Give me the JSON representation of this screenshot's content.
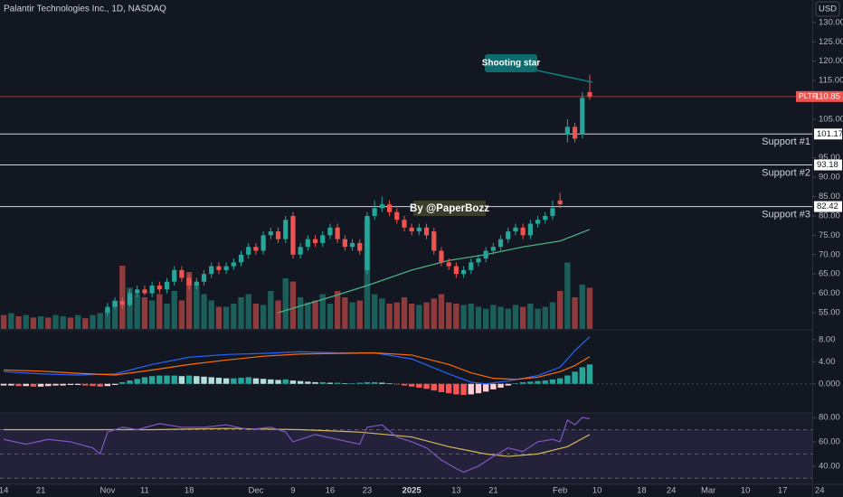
{
  "chart_data": {
    "type": "candlestick",
    "title": "Palantir Technologies Inc., 1D, NASDAQ",
    "currency": "USD",
    "xlim": [
      -0.5,
      109
    ],
    "xticks": [
      {
        "value": 0,
        "label": "14"
      },
      {
        "value": 5,
        "label": "21"
      },
      {
        "value": 14,
        "label": "Nov"
      },
      {
        "value": 19,
        "label": "11"
      },
      {
        "value": 25,
        "label": "18"
      },
      {
        "value": 34,
        "label": "Dec"
      },
      {
        "value": 39,
        "label": "9"
      },
      {
        "value": 44,
        "label": "16"
      },
      {
        "value": 49,
        "label": "23"
      },
      {
        "value": 55,
        "label": "2025"
      },
      {
        "value": 61,
        "label": "13"
      },
      {
        "value": 66,
        "label": "21"
      },
      {
        "value": 75,
        "label": "Feb"
      },
      {
        "value": 80,
        "label": "10"
      },
      {
        "value": 86,
        "label": "18"
      },
      {
        "value": 90,
        "label": "24"
      },
      {
        "value": 95,
        "label": "Mar"
      },
      {
        "value": 100,
        "label": "10"
      },
      {
        "value": 105,
        "label": "17"
      },
      {
        "value": 110,
        "label": "24"
      }
    ],
    "ylim": [
      50.8,
      135.8
    ],
    "yticks": [
      {
        "value": 130,
        "label": "130.00"
      },
      {
        "value": 125,
        "label": "125.00"
      },
      {
        "value": 120,
        "label": "120.00"
      },
      {
        "value": 115,
        "label": "115.00"
      },
      {
        "value": 105,
        "label": "105.00"
      },
      {
        "value": 95,
        "label": "95.00"
      },
      {
        "value": 90,
        "label": "90.00"
      },
      {
        "value": 85,
        "label": "85.00"
      },
      {
        "value": 80,
        "label": "80.00"
      },
      {
        "value": 75,
        "label": "75.00"
      },
      {
        "value": 70,
        "label": "70.00"
      },
      {
        "value": 65,
        "label": "65.00"
      },
      {
        "value": 60,
        "label": "60.00"
      },
      {
        "value": 55,
        "label": "55.00"
      }
    ],
    "up_color": "#26a69a",
    "down_color": "#ef5350",
    "open": [
      null,
      null,
      null,
      null,
      null,
      null,
      null,
      null,
      null,
      null,
      null,
      null,
      null,
      null,
      55,
      56.5,
      58,
      57,
      60,
      61,
      60,
      62,
      61,
      63,
      66,
      64,
      62,
      63,
      65,
      67,
      66,
      67,
      68,
      70,
      72,
      71,
      75,
      76,
      74,
      80,
      70,
      72,
      74,
      73,
      75,
      77,
      74,
      72,
      73,
      66,
      80,
      82,
      83,
      81,
      79,
      77,
      76,
      77,
      76,
      71,
      68,
      67,
      65,
      66,
      68,
      69,
      71,
      72,
      74,
      76,
      77,
      75,
      78,
      79,
      80,
      84,
      101,
      103,
      101,
      112
    ],
    "high": [
      null,
      null,
      null,
      null,
      null,
      null,
      null,
      null,
      null,
      null,
      null,
      null,
      null,
      null,
      57.5,
      59,
      59,
      61,
      62,
      62,
      63,
      63,
      64,
      67,
      67,
      65,
      64,
      66,
      68,
      68,
      68,
      69,
      71,
      73,
      73,
      76,
      77,
      77,
      80,
      81,
      73,
      75,
      75,
      76,
      78,
      78,
      75,
      74,
      74,
      81,
      84,
      85,
      84,
      82,
      80,
      78,
      78,
      78,
      77,
      72,
      69,
      68,
      67,
      69,
      70,
      72,
      73,
      75,
      77,
      78,
      78,
      79,
      80,
      81,
      84,
      86,
      105,
      104,
      112,
      116.5
    ],
    "low": [
      null,
      null,
      null,
      null,
      null,
      null,
      null,
      null,
      null,
      null,
      null,
      null,
      null,
      null,
      54,
      56,
      56,
      56.5,
      59,
      59.5,
      59,
      60,
      60,
      62,
      63,
      61,
      61,
      62,
      64,
      65,
      65,
      66,
      67,
      69,
      70,
      70,
      74,
      73,
      73,
      69,
      69,
      71,
      72,
      72,
      74,
      73,
      71,
      71,
      70,
      65,
      79,
      81,
      80,
      78,
      76,
      75,
      75,
      74,
      70,
      67,
      66,
      64,
      64,
      65,
      67,
      68,
      70,
      71,
      73,
      75,
      74,
      74,
      77,
      78,
      79,
      82,
      99,
      99,
      100,
      110
    ],
    "close": [
      null,
      null,
      null,
      null,
      null,
      null,
      null,
      null,
      null,
      null,
      null,
      null,
      null,
      null,
      56.5,
      58,
      57,
      60,
      61,
      60,
      62,
      61,
      63,
      66,
      64,
      62,
      63,
      65,
      67,
      66,
      67,
      68,
      70,
      72,
      71,
      75,
      76,
      74,
      79,
      70,
      72,
      74,
      73,
      75,
      77,
      74,
      72,
      73,
      71,
      80,
      82,
      83,
      81,
      79,
      77,
      76,
      77,
      75,
      71,
      68,
      67,
      65,
      66,
      68,
      69,
      71,
      72,
      74,
      76,
      77,
      75,
      78,
      79,
      80,
      82,
      83,
      103,
      100,
      110.5,
      110.85
    ],
    "ma": {
      "color": "#4caf84",
      "x": [
        37,
        44,
        49,
        55,
        60,
        65,
        70,
        75,
        79
      ],
      "values": [
        55,
        59,
        62,
        66,
        68.5,
        70,
        72,
        73.5,
        76.5
      ]
    },
    "volume": {
      "vlim": [
        0,
        200
      ],
      "up_color": "#1b5e5a",
      "down_color": "#8e3b3e",
      "up": [
        0,
        1,
        0,
        1,
        0,
        1,
        0,
        1,
        1,
        0,
        1,
        0,
        1,
        1,
        1,
        1,
        0,
        1,
        1,
        0,
        1,
        0,
        1,
        1,
        0,
        0,
        1,
        1,
        1,
        0,
        1,
        1,
        1,
        1,
        0,
        1,
        1,
        0,
        1,
        0,
        1,
        1,
        0,
        1,
        1,
        0,
        0,
        1,
        0,
        1,
        1,
        1,
        0,
        0,
        0,
        0,
        1,
        0,
        0,
        0,
        0,
        0,
        1,
        1,
        1,
        1,
        1,
        1,
        1,
        1,
        0,
        1,
        1,
        1,
        1,
        0,
        1,
        0,
        1,
        0
      ],
      "values": [
        22,
        25,
        20,
        22,
        18,
        20,
        18,
        22,
        20,
        18,
        22,
        17,
        22,
        25,
        30,
        45,
        100,
        65,
        55,
        50,
        45,
        55,
        40,
        60,
        45,
        90,
        70,
        55,
        45,
        35,
        35,
        40,
        50,
        55,
        40,
        38,
        60,
        45,
        80,
        75,
        50,
        42,
        45,
        55,
        40,
        60,
        50,
        42,
        45,
        175,
        55,
        48,
        40,
        42,
        50,
        40,
        38,
        42,
        48,
        55,
        42,
        40,
        38,
        40,
        35,
        32,
        38,
        35,
        32,
        38,
        35,
        40,
        32,
        35,
        42,
        60,
        105,
        50,
        70,
        65
      ]
    },
    "levels": [
      {
        "name": "Support #1",
        "value": 101.17
      },
      {
        "name": "Support #2",
        "value": 93.18
      },
      {
        "name": "Support #3",
        "value": 82.42
      }
    ],
    "last": {
      "symbol": "PLTR",
      "value": 110.85
    },
    "annotations": [
      "Shooting star",
      "By @PaperBozz"
    ],
    "macd": {
      "ylim": [
        -5.1,
        9.6
      ],
      "yticks": [
        {
          "value": 8,
          "label": "8.00"
        },
        {
          "value": 4,
          "label": "4.00"
        },
        {
          "value": 0,
          "label": "0.000"
        }
      ],
      "histogram": [
        -0.3,
        -0.3,
        -0.4,
        -0.4,
        -0.5,
        -0.5,
        -0.4,
        -0.3,
        -0.3,
        -0.2,
        -0.2,
        -0.3,
        -0.4,
        -0.5,
        -0.4,
        -0.2,
        0.3,
        0.6,
        0.9,
        1.2,
        1.4,
        1.5,
        1.5,
        1.5,
        1.4,
        1.5,
        1.4,
        1.3,
        1.2,
        1.1,
        1.0,
        1.0,
        1.1,
        1.2,
        1.0,
        0.9,
        0.8,
        0.7,
        0.8,
        0.6,
        0.5,
        0.4,
        0.3,
        0.3,
        0.2,
        0.2,
        0.1,
        0.1,
        0.2,
        0.3,
        0.3,
        0.2,
        0.1,
        -0.1,
        -0.3,
        -0.5,
        -0.7,
        -0.9,
        -1.2,
        -1.5,
        -1.7,
        -1.9,
        -2.0,
        -1.9,
        -1.7,
        -1.4,
        -1.0,
        -0.7,
        -0.3,
        0.1,
        0.3,
        0.4,
        0.5,
        0.6,
        0.8,
        1.0,
        1.5,
        2.2,
        3.0,
        3.5
      ],
      "macd": {
        "color": "#2962ff",
        "x": [
          0,
          5,
          10,
          15,
          20,
          25,
          30,
          35,
          40,
          45,
          50,
          55,
          60,
          63,
          65,
          68,
          72,
          75,
          77,
          79
        ],
        "values": [
          2.2,
          1.8,
          1.6,
          1.8,
          3.5,
          4.8,
          5.3,
          5.5,
          5.8,
          5.6,
          5.6,
          4.5,
          1.8,
          0.3,
          0,
          0.5,
          1.5,
          3,
          6,
          8.5
        ]
      },
      "signal": {
        "color": "#ff6d00",
        "x": [
          0,
          5,
          10,
          15,
          20,
          25,
          30,
          35,
          40,
          45,
          50,
          55,
          60,
          63,
          66,
          69,
          72,
          75,
          77,
          79
        ],
        "values": [
          2.5,
          2.3,
          1.9,
          1.6,
          2.5,
          3.5,
          4.3,
          5.0,
          5.4,
          5.5,
          5.6,
          5.2,
          3.5,
          2.0,
          1.0,
          0.8,
          1.2,
          2.2,
          3.3,
          4.9
        ]
      }
    },
    "rsi": {
      "ylim": [
        25,
        83
      ],
      "yticks": [
        {
          "value": 80,
          "label": "80.00"
        },
        {
          "value": 60,
          "label": "60.00"
        },
        {
          "value": 40,
          "label": "40.00"
        }
      ],
      "bands": [
        70,
        50,
        30
      ],
      "rsi": {
        "color": "#7e57c2",
        "x": [
          0,
          3,
          6,
          9,
          12,
          13,
          14,
          16,
          18,
          21,
          24,
          27,
          30,
          33,
          36,
          38,
          39,
          42,
          45,
          48,
          49,
          51,
          53,
          55,
          57,
          59,
          61,
          62,
          64,
          66,
          68,
          70,
          72,
          74,
          75,
          76,
          77,
          78,
          79
        ],
        "values": [
          62,
          58,
          62,
          60,
          55,
          50,
          68,
          72,
          70,
          75,
          72,
          72,
          74,
          70,
          72,
          68,
          60,
          66,
          62,
          58,
          72,
          74,
          64,
          60,
          55,
          45,
          38,
          35,
          40,
          48,
          55,
          52,
          60,
          62,
          60,
          78,
          74,
          80,
          79
        ]
      },
      "ma": {
        "color": "#d4b65a",
        "x": [
          0,
          10,
          20,
          30,
          40,
          48,
          55,
          60,
          65,
          68,
          72,
          76,
          79
        ],
        "values": [
          70,
          70,
          70,
          71,
          70,
          68,
          64,
          56,
          50,
          48,
          50,
          56,
          66
        ]
      }
    }
  }
}
